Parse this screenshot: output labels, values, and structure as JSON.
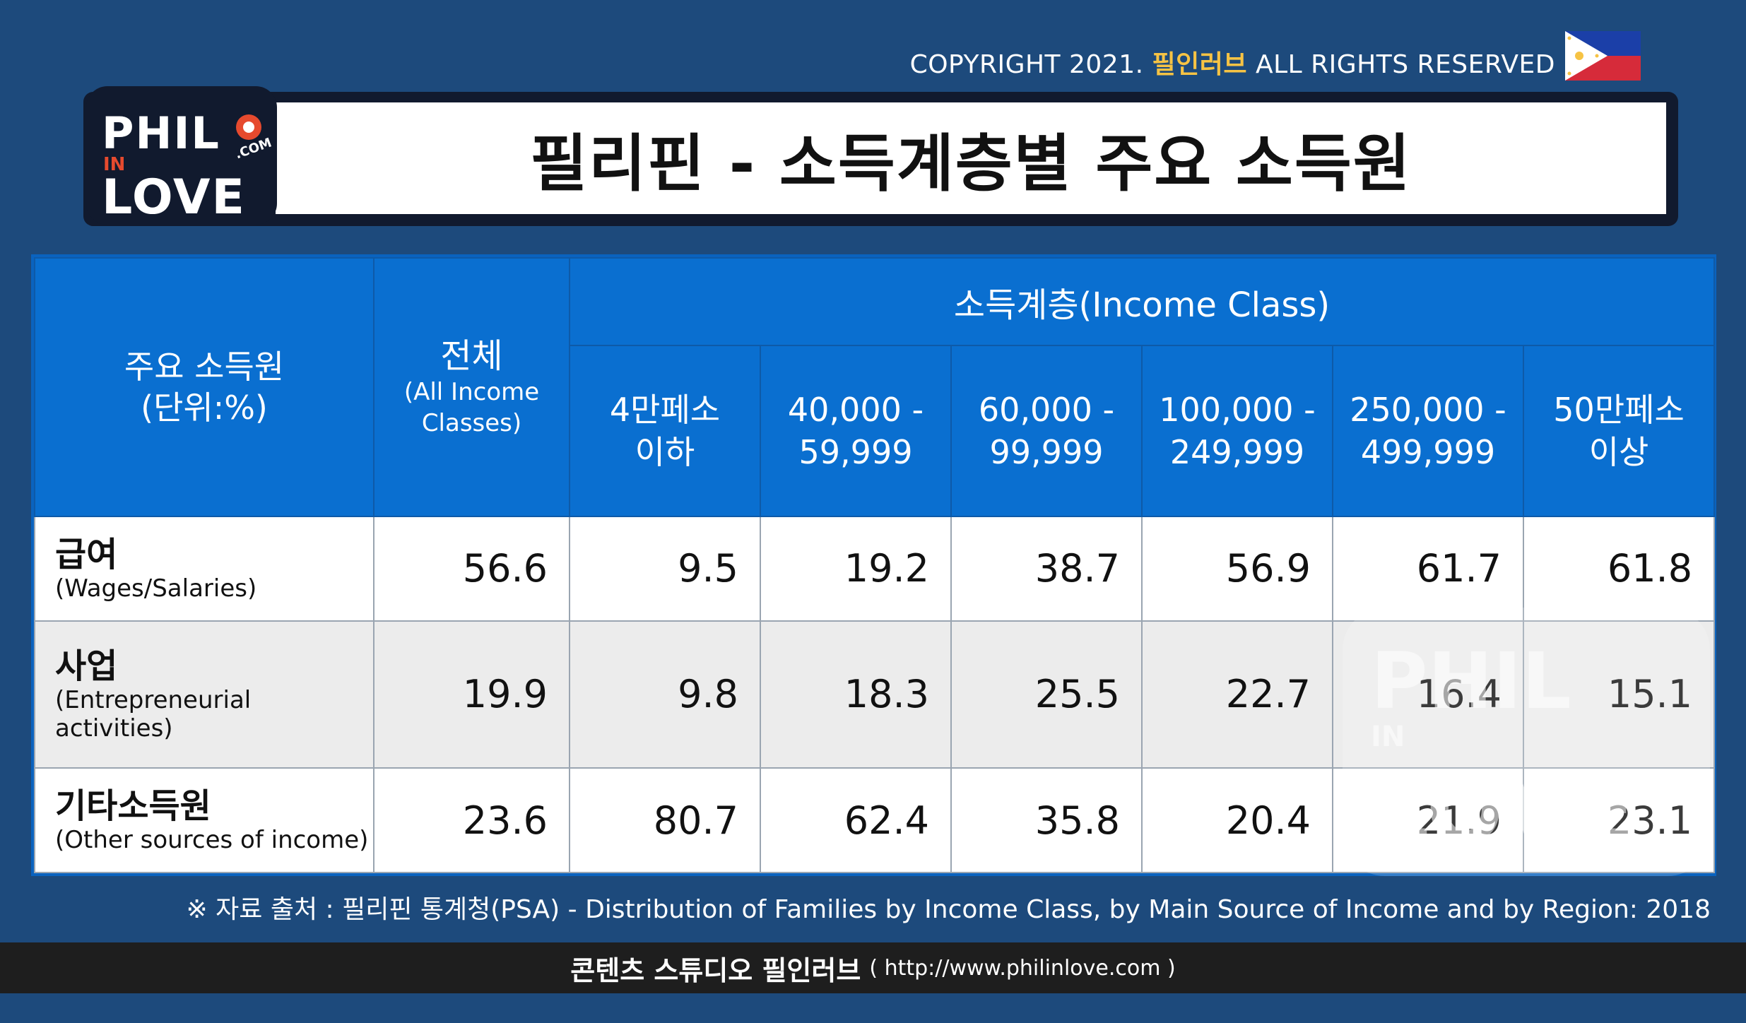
{
  "copyright": {
    "prefix": "COPYRIGHT 2021.",
    "brand": "필인러브",
    "suffix": "ALL RIGHTS RESERVED"
  },
  "logo": {
    "line1": "PHIL",
    "line2": "IN",
    "line3": "LOVE",
    "com": ".COM"
  },
  "title": "필리핀 - 소득계층별 주요 소득원",
  "table": {
    "header": {
      "source_label": "주요 소득원",
      "unit_label": "(단위:%)",
      "total_label": "전체",
      "total_sub1": "(All Income",
      "total_sub2": "Classes)",
      "income_class": "소득계층(Income Class)",
      "classes": [
        {
          "line1": "4만페소",
          "line2": "이하"
        },
        {
          "line1": "40,000 -",
          "line2": "59,999"
        },
        {
          "line1": "60,000 -",
          "line2": "99,999"
        },
        {
          "line1": "100,000 -",
          "line2": "249,999"
        },
        {
          "line1": "250,000 -",
          "line2": "499,999"
        },
        {
          "line1": "50만페소",
          "line2": "이상"
        }
      ]
    },
    "rows": [
      {
        "ko": "급여",
        "en": "(Wages/Salaries)",
        "values": [
          "56.6",
          "9.5",
          "19.2",
          "38.7",
          "56.9",
          "61.7",
          "61.8"
        ]
      },
      {
        "ko": "사업",
        "en": " (Entrepreneurial activities)",
        "values": [
          "19.9",
          "9.8",
          "18.3",
          "25.5",
          "22.7",
          "16.4",
          "15.1"
        ]
      },
      {
        "ko": "기타소득원",
        "en": "(Other sources of income)",
        "values": [
          "23.6",
          "80.7",
          "62.4",
          "35.8",
          "20.4",
          "21.9",
          "23.1"
        ]
      }
    ]
  },
  "watermark": {
    "line1": "PHIL",
    "line2": "IN",
    "line3": "LOVE"
  },
  "source": "※ 자료 출처 : 필리핀 통계청(PSA) - Distribution of Families by Income Class, by Main Source of Income and by Region: 2018",
  "footer": {
    "title": "콘텐츠 스튜디오 필인러브",
    "url": "( http://www.philinlove.com )"
  }
}
